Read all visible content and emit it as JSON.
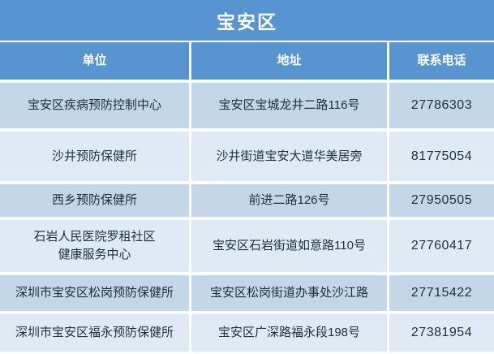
{
  "title": "宝安区",
  "columns": {
    "unit": "单位",
    "address": "地址",
    "phone": "联系电话"
  },
  "rows": [
    {
      "unit": "宝安区疾病预防控制中心",
      "address": "宝安区宝城龙井二路116号",
      "phone": "27786303"
    },
    {
      "unit": "沙井预防保健所",
      "address": "沙井街道宝安大道华美居旁",
      "phone": "81775054"
    },
    {
      "unit": "西乡预防保健所",
      "address": "前进二路126号",
      "phone": "27950505"
    },
    {
      "unit": "石岩人民医院罗租社区\n健康服务中心",
      "address": "宝安区石岩街道如意路110号",
      "phone": "27760417"
    },
    {
      "unit": "深圳市宝安区松岗预防保健所",
      "address": "宝安区松岗街道办事处沙江路",
      "phone": "27715422"
    },
    {
      "unit": "深圳市宝安区福永预防保健所",
      "address": "宝安区广深路福永段198号",
      "phone": "27381954"
    }
  ],
  "colors": {
    "header_blue": "#5794d0",
    "row_dark": "#c3d7e9",
    "row_light": "#dfeaf5",
    "text": "#1f2e3e"
  }
}
